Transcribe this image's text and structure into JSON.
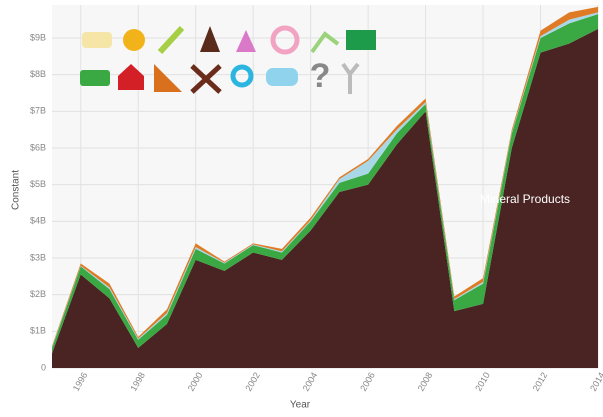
{
  "chart_data": {
    "type": "stacked_area",
    "x": [
      1995,
      1996,
      1997,
      1998,
      1999,
      2000,
      2001,
      2002,
      2003,
      2004,
      2005,
      2006,
      2007,
      2008,
      2009,
      2010,
      2011,
      2012,
      2013,
      2014
    ],
    "xlim": [
      1995,
      2014
    ],
    "xticks": [
      1996,
      1998,
      2000,
      2002,
      2004,
      2006,
      2008,
      2010,
      2012,
      2014
    ],
    "ylim": [
      0,
      9.9
    ],
    "yticks": [
      0,
      {
        "value": 1,
        "label": "$1B"
      },
      {
        "value": 2,
        "label": "$2B"
      },
      {
        "value": 3,
        "label": "$3B"
      },
      {
        "value": 4,
        "label": "$4B"
      },
      {
        "value": 5,
        "label": "$5B"
      },
      {
        "value": 6,
        "label": "$6B"
      },
      {
        "value": 7,
        "label": "$7B"
      },
      {
        "value": 8,
        "label": "$8B"
      },
      {
        "value": 9,
        "label": "$9B"
      }
    ],
    "xlabel": "Year",
    "ylabel": "Constant",
    "grid": true,
    "series": [
      {
        "name": "Mineral Products",
        "color": "#4a2323",
        "values": [
          0.4,
          2.55,
          1.9,
          0.55,
          1.2,
          2.95,
          2.65,
          3.15,
          2.95,
          3.75,
          4.8,
          5.0,
          6.1,
          7.0,
          1.55,
          1.75,
          6.0,
          8.6,
          8.85,
          9.25
        ]
      },
      {
        "color": "#3aa843",
        "values": [
          0.15,
          0.22,
          0.25,
          0.22,
          0.25,
          0.3,
          0.2,
          0.2,
          0.2,
          0.25,
          0.25,
          0.3,
          0.3,
          0.2,
          0.3,
          0.55,
          0.4,
          0.4,
          0.55,
          0.4
        ]
      },
      {
        "color": "#a8d8e8",
        "values": [
          0.02,
          0.02,
          0.05,
          0.03,
          0.05,
          0.05,
          0.02,
          0.02,
          0.03,
          0.03,
          0.1,
          0.35,
          0.1,
          0.05,
          0.03,
          0.05,
          0.03,
          0.05,
          0.1,
          0.05
        ]
      },
      {
        "color": "#e07b25",
        "values": [
          0.03,
          0.06,
          0.1,
          0.05,
          0.1,
          0.1,
          0.03,
          0.03,
          0.07,
          0.07,
          0.05,
          0.05,
          0.1,
          0.1,
          0.07,
          0.1,
          0.07,
          0.15,
          0.2,
          0.15
        ]
      }
    ]
  }
}
